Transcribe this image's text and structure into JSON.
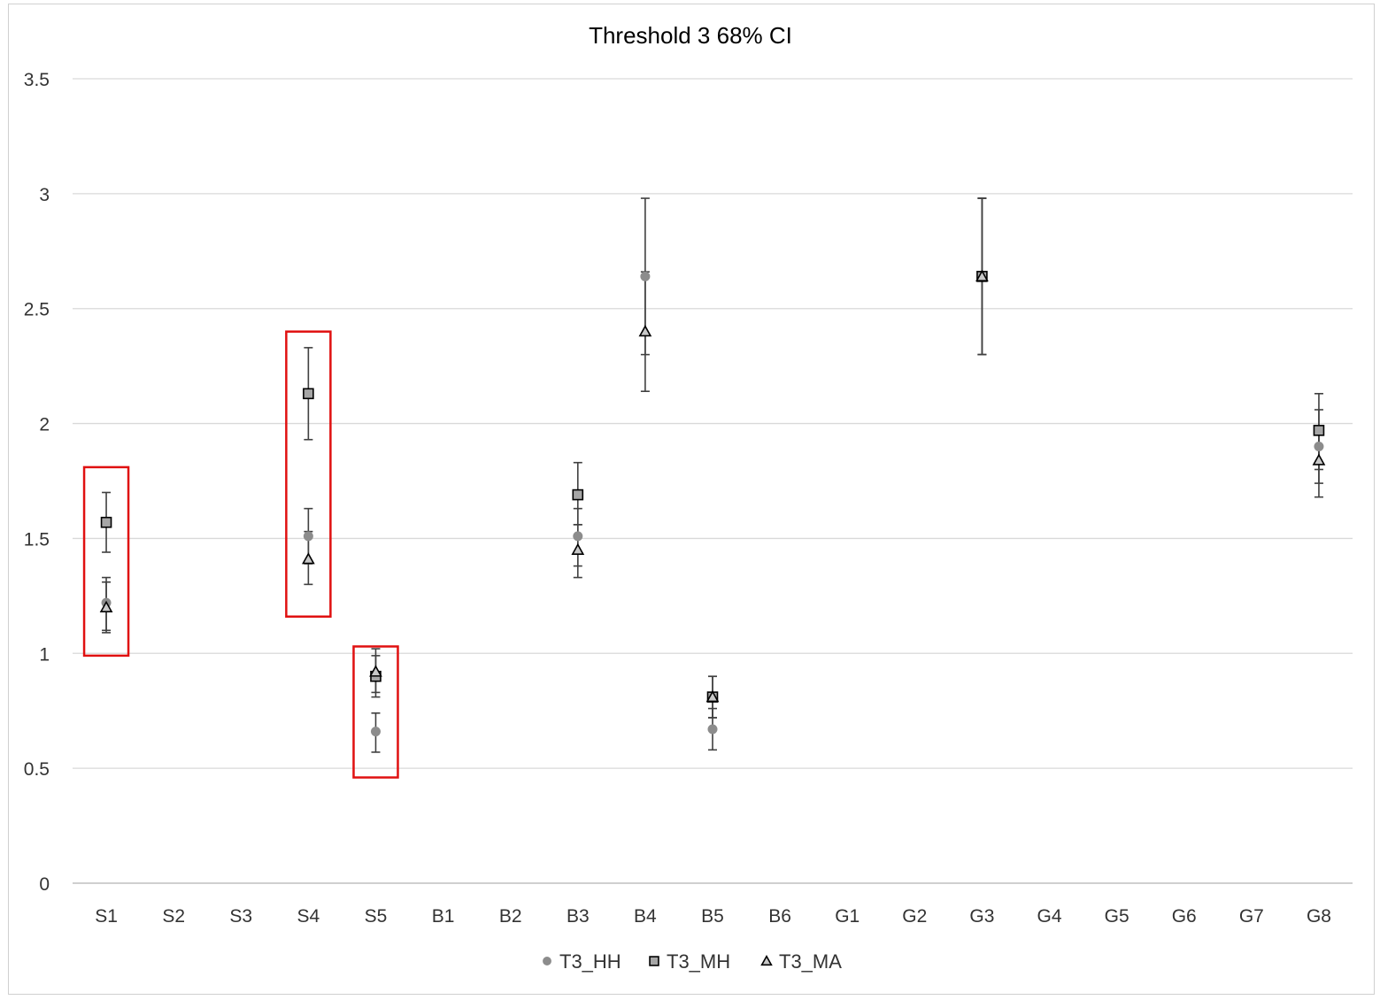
{
  "chart_data": {
    "type": "scatter",
    "title": "Threshold 3 68% CI",
    "categories": [
      "S1",
      "S2",
      "S3",
      "S4",
      "S5",
      "B1",
      "B2",
      "B3",
      "B4",
      "B5",
      "B6",
      "G1",
      "G2",
      "G3",
      "G4",
      "G5",
      "G6",
      "G7",
      "G8"
    ],
    "y_ticks": [
      "0",
      "0.5",
      "1",
      "1.5",
      "2",
      "2.5",
      "3",
      "3.5"
    ],
    "ylim": [
      0,
      3.5
    ],
    "grid": true,
    "legend_position": "bottom",
    "error_bars": "68% CI",
    "series": [
      {
        "name": "T3_HH",
        "marker": "circle",
        "color": "#8c8c8c",
        "points": [
          {
            "x": "S1",
            "y": 1.22,
            "low": 1.1,
            "high": 1.33
          },
          {
            "x": "S4",
            "y": 1.51,
            "low": 1.39,
            "high": 1.63
          },
          {
            "x": "S5",
            "y": 0.66,
            "low": 0.57,
            "high": 0.74
          },
          {
            "x": "B3",
            "y": 1.51,
            "low": 1.38,
            "high": 1.63
          },
          {
            "x": "B4",
            "y": 2.64,
            "low": 2.3,
            "high": 2.98
          },
          {
            "x": "B5",
            "y": 0.67,
            "low": 0.58,
            "high": 0.76
          },
          {
            "x": "G3",
            "y": 2.64,
            "low": 2.3,
            "high": 2.98
          },
          {
            "x": "G8",
            "y": 1.9,
            "low": 1.74,
            "high": 2.06
          }
        ]
      },
      {
        "name": "T3_MH",
        "marker": "square",
        "color": "#a6a6a6",
        "points": [
          {
            "x": "S1",
            "y": 1.57,
            "low": 1.44,
            "high": 1.7
          },
          {
            "x": "S4",
            "y": 2.13,
            "low": 1.93,
            "high": 2.33
          },
          {
            "x": "S5",
            "y": 0.9,
            "low": 0.81,
            "high": 0.99
          },
          {
            "x": "B3",
            "y": 1.69,
            "low": 1.56,
            "high": 1.83
          },
          {
            "x": "B5",
            "y": 0.81,
            "low": 0.72,
            "high": 0.9
          },
          {
            "x": "G3",
            "y": 2.64,
            "low": 2.3,
            "high": 2.98
          },
          {
            "x": "G8",
            "y": 1.97,
            "low": 1.8,
            "high": 2.13
          }
        ]
      },
      {
        "name": "T3_MA",
        "marker": "triangle",
        "color": "#c8c8c8",
        "points": [
          {
            "x": "S1",
            "y": 1.2,
            "low": 1.09,
            "high": 1.31
          },
          {
            "x": "S4",
            "y": 1.41,
            "low": 1.3,
            "high": 1.53
          },
          {
            "x": "S5",
            "y": 0.92,
            "low": 0.83,
            "high": 1.02
          },
          {
            "x": "B3",
            "y": 1.45,
            "low": 1.33,
            "high": 1.56
          },
          {
            "x": "B4",
            "y": 2.4,
            "low": 2.14,
            "high": 2.66
          },
          {
            "x": "B5",
            "y": 0.81,
            "low": 0.72,
            "high": 0.9
          },
          {
            "x": "G3",
            "y": 2.64,
            "low": 2.3,
            "high": 2.98
          },
          {
            "x": "G8",
            "y": 1.84,
            "low": 1.68,
            "high": 1.99
          }
        ]
      }
    ],
    "highlight_boxes": [
      {
        "category": "S1",
        "y_low": 0.99,
        "y_high": 1.81,
        "color": "#e01010"
      },
      {
        "category": "S4",
        "y_low": 1.16,
        "y_high": 2.4,
        "color": "#e01010"
      },
      {
        "category": "S5",
        "y_low": 0.46,
        "y_high": 1.03,
        "color": "#e01010"
      }
    ]
  }
}
